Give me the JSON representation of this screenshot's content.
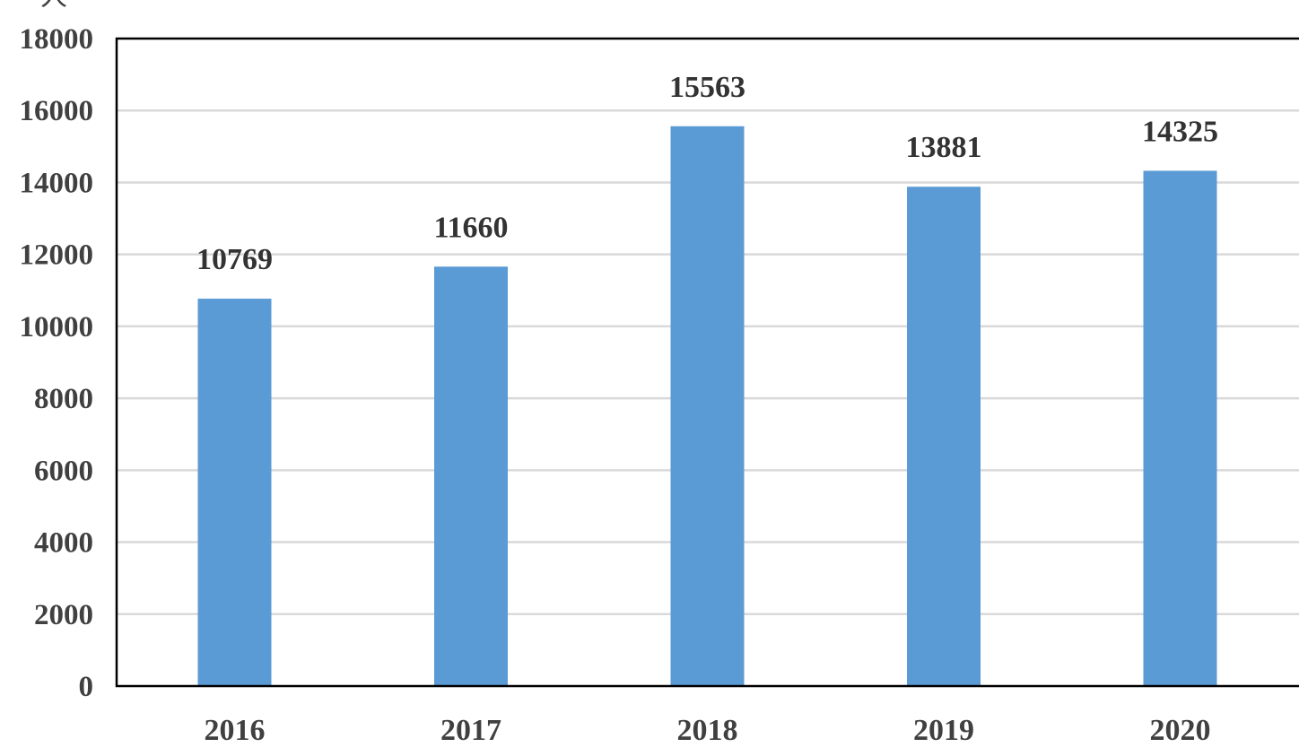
{
  "chart_data": {
    "type": "bar",
    "title": "",
    "ylabel": "人",
    "xlabel": "",
    "categories": [
      "2016",
      "2017",
      "2018",
      "2019",
      "2020"
    ],
    "values": [
      10769,
      11660,
      15563,
      13881,
      14325
    ],
    "data_labels": [
      "10769",
      "11660",
      "15563",
      "13881",
      "14325"
    ],
    "ylim": [
      0,
      18000
    ],
    "y_ticks": [
      0,
      2000,
      4000,
      6000,
      8000,
      10000,
      12000,
      14000,
      16000,
      18000
    ],
    "y_tick_labels": [
      "0",
      "2000",
      "4000",
      "6000",
      "8000",
      "10000",
      "12000",
      "14000",
      "16000",
      "18000"
    ],
    "grid": true,
    "legend": "none",
    "colors": {
      "bar": "#5b9bd5",
      "grid": "#d9d9d9",
      "axis": "#000000",
      "text": "#404040"
    }
  }
}
